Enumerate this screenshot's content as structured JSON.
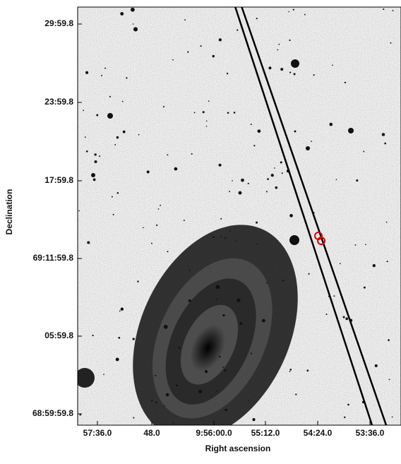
{
  "x_axis": {
    "label": "Right ascension",
    "ticks": [
      "57:36.0",
      "48.0",
      "9:56:00.0",
      "55:12.0",
      "54:24.0",
      "53:36.0"
    ]
  },
  "y_axis": {
    "label": "Declination",
    "ticks": [
      "29:59.8",
      "23:59.8",
      "17:59.8",
      "69:11:59.8",
      "05:59.8",
      "68:59:59.8"
    ]
  }
}
